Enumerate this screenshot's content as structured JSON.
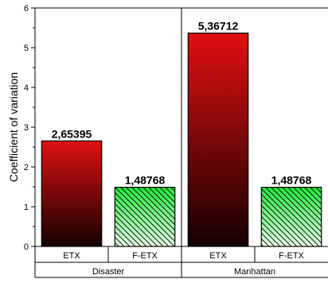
{
  "chart_data": {
    "type": "bar",
    "ylabel": "Coefficient of variation",
    "ylim": [
      0,
      6
    ],
    "yticks": [
      "0",
      "1",
      "2",
      "3",
      "4",
      "5",
      "6"
    ],
    "groups": [
      {
        "name": "Disaster",
        "bars": [
          {
            "category": "ETX",
            "value": 2.65395,
            "label": "2,65395",
            "style": "red-gradient"
          },
          {
            "category": "F-ETX",
            "value": 1.48768,
            "label": "1,48768",
            "style": "green-gradient-hatched"
          }
        ]
      },
      {
        "name": "Manhattan",
        "bars": [
          {
            "category": "ETX",
            "value": 5.36712,
            "label": "5,36712",
            "style": "red-gradient"
          },
          {
            "category": "F-ETX",
            "value": 1.48768,
            "label": "1,48768",
            "style": "green-gradient-hatched"
          }
        ]
      }
    ],
    "colors": {
      "red_top": "#e01010",
      "red_bottom": "#140000",
      "green_top": "#22e83a",
      "green_bottom": "#e6ffe6",
      "hatch": "#000000"
    },
    "grid": false,
    "legend": "none"
  }
}
